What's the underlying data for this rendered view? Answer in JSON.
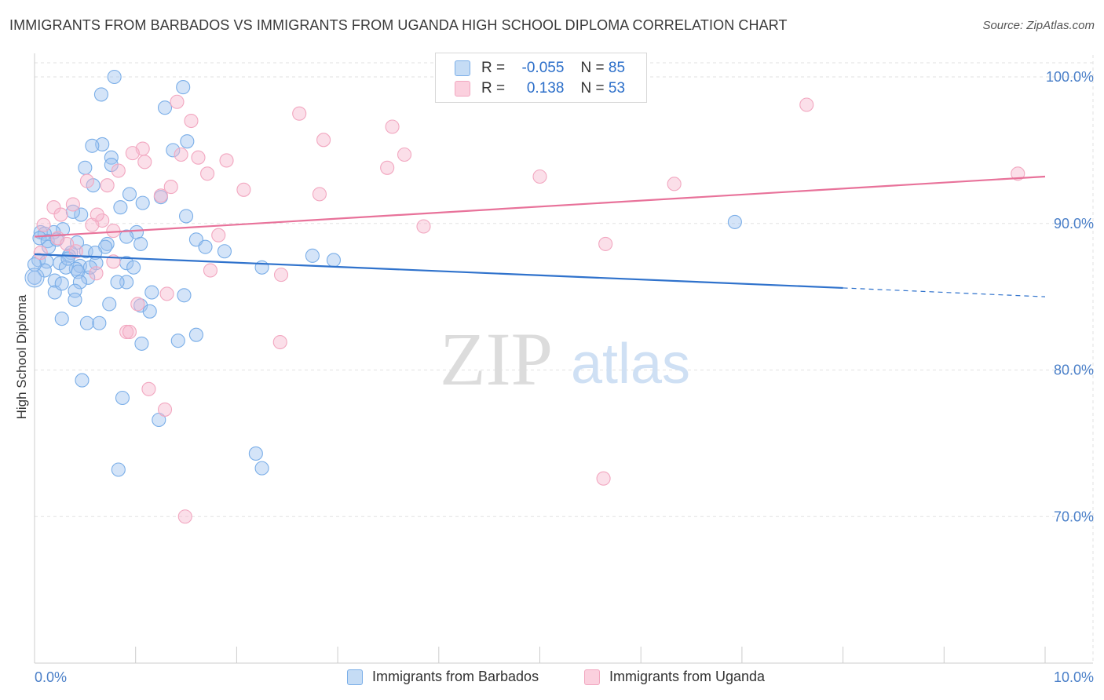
{
  "title": "IMMIGRANTS FROM BARBADOS VS IMMIGRANTS FROM UGANDA HIGH SCHOOL DIPLOMA CORRELATION CHART",
  "source": "Source: ZipAtlas.com",
  "watermark": {
    "zip": "ZIP",
    "atlas": "atlas"
  },
  "legend": {
    "r_label": "R =",
    "n_label": "N =",
    "rows": [
      {
        "r": "-0.055",
        "n": "85"
      },
      {
        "r": "0.138",
        "n": "53"
      }
    ]
  },
  "chart_data": {
    "type": "scatter",
    "title": "IMMIGRANTS FROM BARBADOS VS IMMIGRANTS FROM UGANDA HIGH SCHOOL DIPLOMA CORRELATION CHART",
    "xlabel": "",
    "ylabel": "High School Diploma",
    "xlim": [
      0,
      10
    ],
    "ylim": [
      60,
      101.5
    ],
    "x_tick_labels": [
      "0.0%",
      "10.0%"
    ],
    "y_ticks": [
      {
        "value": 70,
        "label": "70.0%"
      },
      {
        "value": 80,
        "label": "80.0%"
      },
      {
        "value": 90,
        "label": "90.0%"
      },
      {
        "value": 100,
        "label": "100.0%"
      }
    ],
    "series": [
      {
        "name": "Immigrants from Barbados",
        "color": "#7aaee8",
        "line_color": "#2f72cc",
        "r": -0.055,
        "n": 85,
        "trend": {
          "x0": 0,
          "y0": 87.9,
          "x1": 8.0,
          "y1": 85.6,
          "dash_to_x": 10.0,
          "dash_to_y": 85.0
        },
        "points": [
          [
            0.79,
            100.0
          ],
          [
            1.47,
            99.3
          ],
          [
            0.66,
            98.8
          ],
          [
            1.29,
            97.9
          ],
          [
            0.67,
            95.4
          ],
          [
            0.57,
            95.3
          ],
          [
            1.51,
            95.6
          ],
          [
            1.37,
            95.0
          ],
          [
            0.76,
            94.5
          ],
          [
            0.5,
            93.8
          ],
          [
            0.76,
            94.0
          ],
          [
            0.58,
            92.6
          ],
          [
            0.94,
            92.0
          ],
          [
            1.25,
            91.8
          ],
          [
            0.85,
            91.1
          ],
          [
            1.07,
            91.4
          ],
          [
            0.46,
            90.6
          ],
          [
            0.38,
            90.8
          ],
          [
            1.5,
            90.5
          ],
          [
            0.28,
            89.6
          ],
          [
            0.19,
            89.4
          ],
          [
            0.06,
            89.4
          ],
          [
            0.1,
            89.3
          ],
          [
            0.05,
            89.0
          ],
          [
            0.13,
            88.8
          ],
          [
            1.01,
            89.4
          ],
          [
            0.91,
            89.1
          ],
          [
            0.72,
            88.6
          ],
          [
            0.42,
            88.7
          ],
          [
            1.05,
            88.6
          ],
          [
            1.6,
            88.9
          ],
          [
            1.69,
            88.4
          ],
          [
            0.7,
            88.4
          ],
          [
            0.51,
            88.1
          ],
          [
            0.6,
            88.0
          ],
          [
            0.36,
            88.0
          ],
          [
            0.34,
            87.8
          ],
          [
            0.04,
            87.5
          ],
          [
            0.12,
            87.4
          ],
          [
            0.25,
            87.3
          ],
          [
            0.45,
            87.1
          ],
          [
            0.61,
            87.3
          ],
          [
            0.41,
            86.9
          ],
          [
            0.91,
            87.3
          ],
          [
            0.98,
            87.0
          ],
          [
            0.31,
            87.0
          ],
          [
            0.1,
            86.8
          ],
          [
            0.43,
            86.7
          ],
          [
            0.53,
            86.3
          ],
          [
            0.45,
            86.0
          ],
          [
            0.91,
            86.0
          ],
          [
            0.2,
            86.1
          ],
          [
            0.0,
            86.3
          ],
          [
            0.4,
            85.4
          ],
          [
            0.2,
            85.3
          ],
          [
            1.16,
            85.3
          ],
          [
            1.48,
            85.1
          ],
          [
            0.4,
            84.8
          ],
          [
            0.74,
            84.5
          ],
          [
            1.05,
            84.4
          ],
          [
            1.14,
            84.0
          ],
          [
            0.27,
            83.5
          ],
          [
            0.52,
            83.2
          ],
          [
            0.64,
            83.2
          ],
          [
            1.06,
            81.8
          ],
          [
            1.42,
            82.0
          ],
          [
            1.6,
            82.4
          ],
          [
            0.47,
            79.3
          ],
          [
            0.87,
            78.1
          ],
          [
            1.23,
            76.6
          ],
          [
            0.83,
            73.2
          ],
          [
            2.19,
            74.3
          ],
          [
            2.25,
            73.3
          ],
          [
            1.88,
            88.1
          ],
          [
            2.25,
            87.0
          ],
          [
            2.75,
            87.8
          ],
          [
            2.96,
            87.5
          ],
          [
            6.93,
            90.1
          ],
          [
            0.14,
            88.4
          ],
          [
            0.0,
            87.2
          ],
          [
            0.22,
            88.9
          ],
          [
            0.33,
            87.6
          ],
          [
            0.82,
            86.0
          ],
          [
            0.55,
            87.0
          ],
          [
            0.27,
            85.9
          ]
        ]
      },
      {
        "name": "Immigrants from Uganda",
        "color": "#f2a7c0",
        "line_color": "#e8729a",
        "r": 0.138,
        "n": 53,
        "trend": {
          "x0": 0,
          "y0": 89.1,
          "x1": 10.0,
          "y1": 93.2
        },
        "points": [
          [
            1.41,
            98.3
          ],
          [
            1.55,
            97.0
          ],
          [
            2.62,
            97.5
          ],
          [
            3.54,
            96.6
          ],
          [
            7.64,
            98.1
          ],
          [
            2.86,
            95.7
          ],
          [
            1.07,
            95.1
          ],
          [
            0.97,
            94.8
          ],
          [
            1.45,
            94.7
          ],
          [
            1.62,
            94.5
          ],
          [
            3.66,
            94.7
          ],
          [
            1.09,
            94.2
          ],
          [
            1.9,
            94.3
          ],
          [
            3.49,
            93.8
          ],
          [
            0.83,
            93.6
          ],
          [
            1.71,
            93.4
          ],
          [
            0.52,
            92.9
          ],
          [
            0.72,
            92.6
          ],
          [
            5.0,
            93.2
          ],
          [
            6.33,
            92.7
          ],
          [
            9.73,
            93.4
          ],
          [
            1.35,
            92.5
          ],
          [
            2.07,
            92.3
          ],
          [
            2.82,
            92.0
          ],
          [
            1.25,
            91.9
          ],
          [
            0.38,
            91.3
          ],
          [
            0.19,
            91.1
          ],
          [
            0.26,
            90.6
          ],
          [
            0.67,
            90.2
          ],
          [
            0.09,
            89.9
          ],
          [
            0.57,
            89.9
          ],
          [
            0.78,
            89.5
          ],
          [
            0.62,
            90.6
          ],
          [
            1.82,
            89.2
          ],
          [
            3.85,
            89.8
          ],
          [
            0.23,
            89.0
          ],
          [
            0.32,
            88.6
          ],
          [
            0.41,
            88.1
          ],
          [
            0.06,
            88.0
          ],
          [
            0.78,
            87.4
          ],
          [
            5.65,
            88.6
          ],
          [
            1.74,
            86.8
          ],
          [
            2.44,
            86.5
          ],
          [
            0.61,
            86.6
          ],
          [
            1.31,
            85.2
          ],
          [
            1.02,
            84.5
          ],
          [
            0.91,
            82.6
          ],
          [
            0.94,
            82.6
          ],
          [
            2.43,
            81.9
          ],
          [
            1.13,
            78.7
          ],
          [
            1.29,
            77.3
          ],
          [
            5.63,
            72.6
          ],
          [
            1.49,
            70.0
          ]
        ]
      }
    ]
  }
}
